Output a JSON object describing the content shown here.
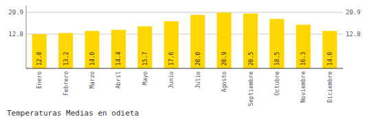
{
  "chart_data": {
    "type": "bar",
    "title": "Temperaturas Medias en odieta",
    "categories": [
      "Enero",
      "Febrero",
      "Marzo",
      "Abril",
      "Mayo",
      "Junio",
      "Julio",
      "Agosto",
      "Septiembre",
      "Octubre",
      "Noviembre",
      "Diciembre"
    ],
    "values": [
      12.8,
      13.2,
      14.0,
      14.4,
      15.7,
      17.6,
      20.0,
      20.9,
      20.5,
      18.5,
      16.3,
      14.0
    ],
    "value_labels": [
      "12.8",
      "13.2",
      "14.0",
      "14.4",
      "15.7",
      "17.6",
      "20.0",
      "20.9",
      "20.5",
      "18.5",
      "16.3",
      "14.0"
    ],
    "data_labels": true,
    "color": "#FFD700",
    "ylim": [
      0,
      23.5
    ],
    "yticks": [
      12.8,
      20.9
    ],
    "y2lim": [
      0,
      23.5
    ],
    "y2ticks": [
      12.8,
      20.9
    ],
    "grid": true
  }
}
